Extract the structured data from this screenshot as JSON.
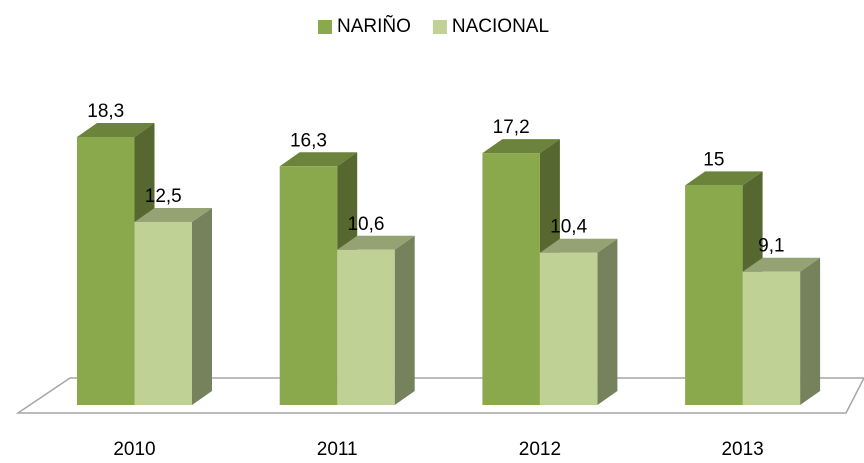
{
  "chart_data": {
    "type": "bar3d",
    "categories": [
      "2010",
      "2011",
      "2012",
      "2013"
    ],
    "series": [
      {
        "name": "NARIÑO",
        "color": "#8aa84c",
        "values": [
          18.3,
          16.3,
          17.2,
          15
        ],
        "value_labels": [
          "18,3",
          "16,3",
          "17,2",
          "15"
        ]
      },
      {
        "name": "NACIONAL",
        "color": "#bfd195",
        "values": [
          12.5,
          10.6,
          10.4,
          9.1
        ],
        "value_labels": [
          "12,5",
          "10,6",
          "10,4",
          "9,1"
        ]
      }
    ],
    "legend": "top"
  }
}
